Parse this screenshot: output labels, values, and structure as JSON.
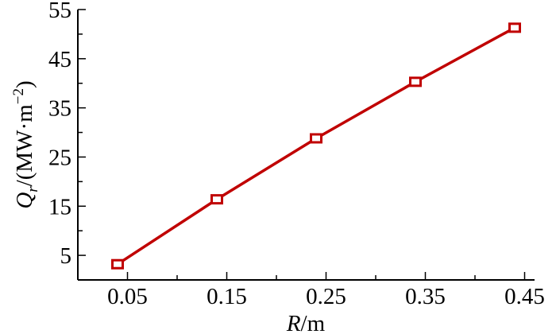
{
  "chart_data": {
    "type": "line",
    "title": "",
    "xlabel": {
      "var": "R",
      "unit": "/m"
    },
    "ylabel": {
      "var": "Q",
      "sub": "r",
      "unit_prefix": "/(MW·m",
      "unit_exp": "−2",
      "unit_suffix": ")"
    },
    "xlim": [
      0.0,
      0.46
    ],
    "ylim": [
      0,
      55
    ],
    "xticks": [
      0.05,
      0.15,
      0.25,
      0.35,
      0.45
    ],
    "xtick_labels": [
      "0.05",
      "0.15",
      "0.25",
      "0.35",
      "0.45"
    ],
    "yticks": [
      5,
      15,
      25,
      35,
      45,
      55
    ],
    "ytick_labels": [
      "5",
      "15",
      "25",
      "35",
      "45",
      "55"
    ],
    "grid": false,
    "series": [
      {
        "color": "#c00000",
        "marker": "square",
        "x": [
          0.04,
          0.14,
          0.24,
          0.34,
          0.44
        ],
        "y": [
          3.2,
          16.4,
          28.8,
          40.3,
          51.3
        ]
      }
    ]
  }
}
